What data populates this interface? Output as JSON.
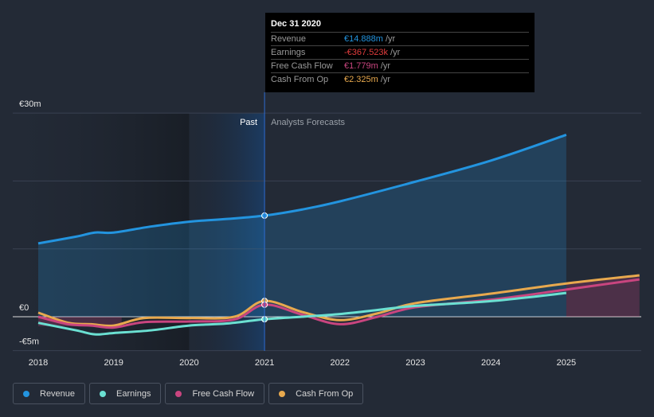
{
  "chart_data": {
    "type": "line",
    "y_unit": "€m",
    "ylim": [
      -5,
      30
    ],
    "xlim": [
      2017.9,
      2025.97
    ],
    "y_ticks": [
      {
        "v": 30,
        "label": "€30m"
      },
      {
        "v": 0,
        "label": "€0"
      },
      {
        "v": -5,
        "label": "-€5m"
      }
    ],
    "x_ticks": [
      "2018",
      "2019",
      "2020",
      "2021",
      "2022",
      "2023",
      "2024",
      "2025"
    ],
    "past_label": "Past",
    "forecast_label": "Analysts Forecasts",
    "divider_x": 2021,
    "series": [
      {
        "name": "Revenue",
        "color": "#2394df",
        "x": [
          2018,
          2018.5,
          2018.75,
          2019,
          2019.5,
          2020,
          2020.5,
          2021,
          2021.5,
          2022,
          2023,
          2024,
          2025
        ],
        "y": [
          10.8,
          11.8,
          12.4,
          12.4,
          13.3,
          14.0,
          14.4,
          14.9,
          15.8,
          17.0,
          19.9,
          23.0,
          26.8
        ]
      },
      {
        "name": "Earnings",
        "color": "#6be0d2",
        "x": [
          2018,
          2018.5,
          2018.75,
          2019,
          2019.5,
          2020,
          2020.5,
          2021,
          2021.5,
          2022,
          2022.5,
          2023,
          2024,
          2025
        ],
        "y": [
          -0.9,
          -2.0,
          -2.6,
          -2.4,
          -2.0,
          -1.3,
          -1.0,
          -0.37,
          0,
          0.4,
          1.0,
          1.6,
          2.3,
          3.5
        ]
      },
      {
        "name": "Free Cash Flow",
        "color": "#c9457f",
        "x": [
          2018,
          2018.4,
          2018.7,
          2019,
          2019.4,
          2020,
          2020.6,
          2021,
          2021.5,
          2022,
          2022.5,
          2023,
          2024,
          2025,
          2025.97
        ],
        "y": [
          0,
          -1.1,
          -1.3,
          -1.6,
          -0.8,
          -0.7,
          -0.4,
          1.78,
          0.3,
          -1.1,
          0,
          1.4,
          2.5,
          4.0,
          5.5
        ]
      },
      {
        "name": "Cash From Op",
        "color": "#e8a94e",
        "x": [
          2018,
          2018.4,
          2018.7,
          2019,
          2019.4,
          2020,
          2020.6,
          2021,
          2021.5,
          2022,
          2022.5,
          2023,
          2024,
          2025,
          2025.97
        ],
        "y": [
          0.6,
          -0.9,
          -1.1,
          -1.3,
          -0.2,
          -0.2,
          0,
          2.33,
          0.7,
          -0.5,
          0.5,
          2.0,
          3.4,
          4.9,
          6.1
        ]
      }
    ]
  },
  "tooltip": {
    "date": "Dec 31 2020",
    "rows": [
      {
        "label": "Revenue",
        "value": "€14.888m",
        "unit": "/yr",
        "color": "#2394df"
      },
      {
        "label": "Earnings",
        "value": "-€367.523k",
        "unit": "/yr",
        "color": "#e03c3c"
      },
      {
        "label": "Free Cash Flow",
        "value": "€1.779m",
        "unit": "/yr",
        "color": "#c9457f"
      },
      {
        "label": "Cash From Op",
        "value": "€2.325m",
        "unit": "/yr",
        "color": "#e8a94e"
      }
    ]
  },
  "legend": [
    {
      "label": "Revenue",
      "color": "#2394df"
    },
    {
      "label": "Earnings",
      "color": "#6be0d2"
    },
    {
      "label": "Free Cash Flow",
      "color": "#c9457f"
    },
    {
      "label": "Cash From Op",
      "color": "#e8a94e"
    }
  ]
}
